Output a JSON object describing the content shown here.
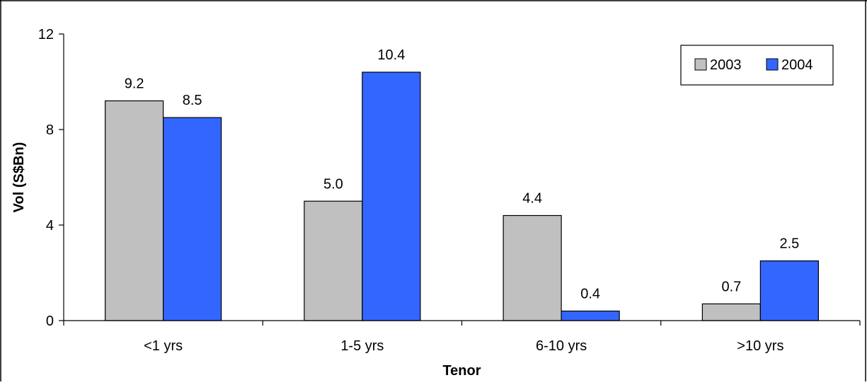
{
  "chart_data": {
    "type": "bar",
    "title": "",
    "xlabel": "Tenor",
    "ylabel": "Vol (S$Bn)",
    "categories": [
      "<1 yrs",
      "1-5 yrs",
      "6-10 yrs",
      ">10 yrs"
    ],
    "series": [
      {
        "name": "2003",
        "values": [
          9.2,
          5.0,
          4.4,
          0.7
        ],
        "labels": [
          "9.2",
          "5.0",
          "4.4",
          "0.7"
        ],
        "color": "#c0c0c0"
      },
      {
        "name": "2004",
        "values": [
          8.5,
          10.4,
          0.4,
          2.5
        ],
        "labels": [
          "8.5",
          "10.4",
          "0.4",
          "2.5"
        ],
        "color": "#3366ff"
      }
    ],
    "ylim": [
      0,
      12
    ],
    "yticks": [
      0,
      4,
      8,
      12
    ],
    "grid": false,
    "legend_position": "top-right"
  }
}
